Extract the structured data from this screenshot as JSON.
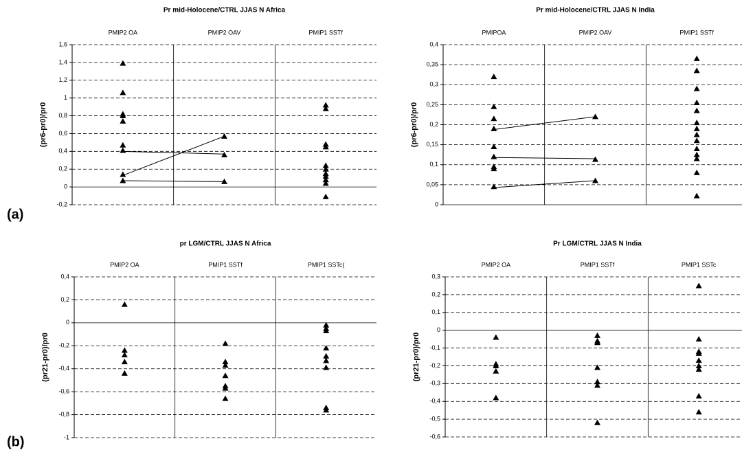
{
  "panel_labels": [
    "(a)",
    "(b)"
  ],
  "chart_data": [
    {
      "type": "strip",
      "title": "Pr mid-Holocene/CTRL JJAS N Africa",
      "ylabel": "(pr6-pr0)/pr0",
      "categories": [
        "PMIP2 OA",
        "PMIP2 OAV",
        "PMIP1 SSTf"
      ],
      "values": [
        [
          1.39,
          1.06,
          0.82,
          0.8,
          0.74,
          0.47,
          0.41,
          0.14,
          0.07
        ],
        [
          0.57,
          0.36,
          0.06
        ],
        [
          0.92,
          0.88,
          0.48,
          0.45,
          0.24,
          0.2,
          0.15,
          0.12,
          0.08,
          0.04,
          -0.11
        ]
      ],
      "lines": [
        {
          "values": [
            0.13,
            0.57
          ]
        },
        {
          "values": [
            0.4,
            0.37
          ]
        },
        {
          "values": [
            0.07,
            0.06
          ]
        }
      ],
      "ylim": [
        -0.2,
        1.6
      ],
      "yticks": [
        {
          "value": 1.6,
          "label": "1,6"
        },
        {
          "value": 1.4,
          "label": "1,4"
        },
        {
          "value": 1.2,
          "label": "1,2"
        },
        1,
        {
          "value": 0.8,
          "label": "0,8"
        },
        {
          "value": 0.6,
          "label": "0,6"
        },
        {
          "value": 0.4,
          "label": "0,4"
        },
        {
          "value": 0.2,
          "label": "0,2"
        },
        0,
        {
          "value": -0.2,
          "label": "-0,2"
        }
      ],
      "grid": true,
      "color": "#000000"
    },
    {
      "type": "strip",
      "title": "Pr  mid-Holocene/CTRL JJAS N India",
      "ylabel": "(pr6-pr0)/pr0",
      "categories": [
        "PMIPOA",
        "PMIP2 OAV",
        "PMIP1 SSTf"
      ],
      "values": [
        [
          0.32,
          0.245,
          0.215,
          0.19,
          0.145,
          0.12,
          0.095,
          0.09,
          0.045
        ],
        [
          0.22,
          0.113,
          0.06
        ],
        [
          0.365,
          0.335,
          0.29,
          0.255,
          0.235,
          0.205,
          0.19,
          0.175,
          0.16,
          0.14,
          0.125,
          0.115,
          0.08,
          0.022
        ]
      ],
      "lines": [
        {
          "values": [
            0.188,
            0.22
          ]
        },
        {
          "values": [
            0.118,
            0.115
          ]
        },
        {
          "values": [
            0.043,
            0.06
          ]
        }
      ],
      "ylim": [
        0,
        0.4
      ],
      "yticks": [
        {
          "value": 0.4,
          "label": "0,4"
        },
        {
          "value": 0.35,
          "label": "0,35"
        },
        {
          "value": 0.3,
          "label": "0,3"
        },
        {
          "value": 0.25,
          "label": "0,25"
        },
        {
          "value": 0.2,
          "label": "0,2"
        },
        {
          "value": 0.15,
          "label": "0,15"
        },
        {
          "value": 0.1,
          "label": "0,1"
        },
        {
          "value": 0.05,
          "label": "0,05"
        },
        0
      ],
      "grid": true,
      "color": "#000000"
    },
    {
      "type": "strip",
      "title": "pr LGM/CTRL JJAS N Africa",
      "ylabel": "(pr21-pr0)/pr0",
      "categories": [
        "PMIP2 OA",
        "PMIP1 SSTf",
        "PMIP1 SSTc("
      ],
      "values": [
        [
          0.16,
          -0.24,
          -0.28,
          -0.34,
          -0.44
        ],
        [
          -0.18,
          -0.34,
          -0.37,
          -0.46,
          -0.55,
          -0.57,
          -0.66
        ],
        [
          -0.02,
          -0.05,
          -0.07,
          -0.22,
          -0.29,
          -0.33,
          -0.39,
          -0.74,
          -0.76
        ]
      ],
      "ylim": [
        -1,
        0.4
      ],
      "yticks": [
        {
          "value": 0.4,
          "label": "0,4"
        },
        {
          "value": 0.2,
          "label": "0,2"
        },
        0,
        {
          "value": -0.2,
          "label": "-0,2"
        },
        {
          "value": -0.4,
          "label": "-0,4"
        },
        {
          "value": -0.6,
          "label": "-0,6"
        },
        {
          "value": -0.8,
          "label": "-0,8"
        },
        -1
      ],
      "grid": true,
      "color": "#000000"
    },
    {
      "type": "strip",
      "title": "Pr LGM/CTRL JJAS N India",
      "ylabel": "(pr21-pr0)/pr0",
      "categories": [
        "PMIP2 OA",
        "PMIP1 SSTf",
        "PMIP1 SSTc"
      ],
      "values": [
        [
          -0.04,
          -0.19,
          -0.2,
          -0.23,
          -0.38
        ],
        [
          -0.03,
          -0.06,
          -0.07,
          -0.21,
          -0.29,
          -0.31,
          -0.52
        ],
        [
          0.25,
          -0.05,
          -0.12,
          -0.13,
          -0.17,
          -0.2,
          -0.22,
          -0.37,
          -0.46
        ]
      ],
      "ylim": [
        -0.6,
        0.3
      ],
      "yticks": [
        {
          "value": 0.3,
          "label": "0,3"
        },
        {
          "value": 0.2,
          "label": "0,2"
        },
        {
          "value": 0.1,
          "label": "0,1"
        },
        0,
        {
          "value": -0.1,
          "label": "-0,1"
        },
        {
          "value": -0.2,
          "label": "-0,2"
        },
        {
          "value": -0.3,
          "label": "-0,3"
        },
        {
          "value": -0.4,
          "label": "-0,4"
        },
        {
          "value": -0.5,
          "label": "-0,5"
        },
        {
          "value": -0.6,
          "label": "-0,6"
        }
      ],
      "grid": true,
      "color": "#000000"
    }
  ]
}
